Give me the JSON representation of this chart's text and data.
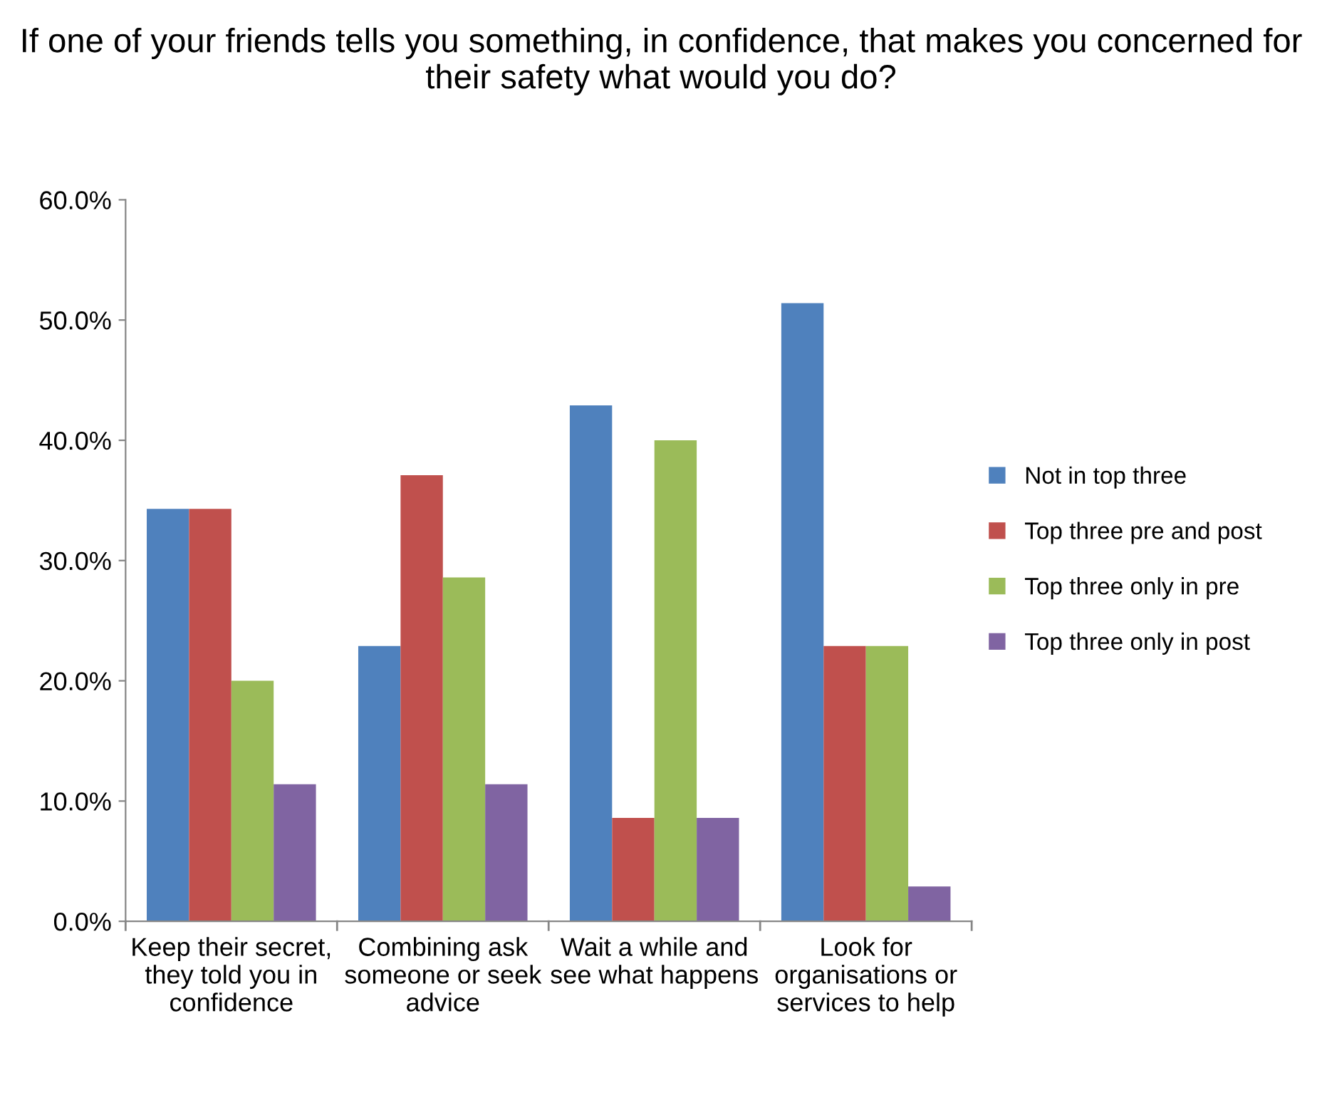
{
  "chart_data": {
    "type": "bar",
    "title": "If one of your friends tells you something, in confidence, that makes you concerned for their safety what would you do?",
    "categories": [
      "Keep their secret,\nthey told you in\nconfidence",
      "Combining ask\nsomeone or seek\nadvice",
      "Wait a while and\nsee what happens",
      "Look for\norganisations or\nservices to help"
    ],
    "series": [
      {
        "name": "Not in top three",
        "color": "#4f81bd",
        "values": [
          34.3,
          22.9,
          42.9,
          51.4
        ]
      },
      {
        "name": "Top three pre and post",
        "color": "#c0504d",
        "values": [
          34.3,
          37.1,
          8.6,
          22.9
        ]
      },
      {
        "name": "Top three only in pre",
        "color": "#9bbb59",
        "values": [
          20.0,
          28.6,
          40.0,
          22.9
        ]
      },
      {
        "name": "Top three only in post",
        "color": "#8064a2",
        "values": [
          11.4,
          11.4,
          8.6,
          2.9
        ]
      }
    ],
    "ylim": [
      0,
      60
    ],
    "yticks": [
      {
        "value": 0,
        "label": "0.0%"
      },
      {
        "value": 10,
        "label": "10.0%"
      },
      {
        "value": 20,
        "label": "20.0%"
      },
      {
        "value": 30,
        "label": "30.0%"
      },
      {
        "value": 40,
        "label": "40.0%"
      },
      {
        "value": 50,
        "label": "50.0%"
      },
      {
        "value": 60,
        "label": "60.0%"
      }
    ],
    "grid": false,
    "legend": "right"
  }
}
